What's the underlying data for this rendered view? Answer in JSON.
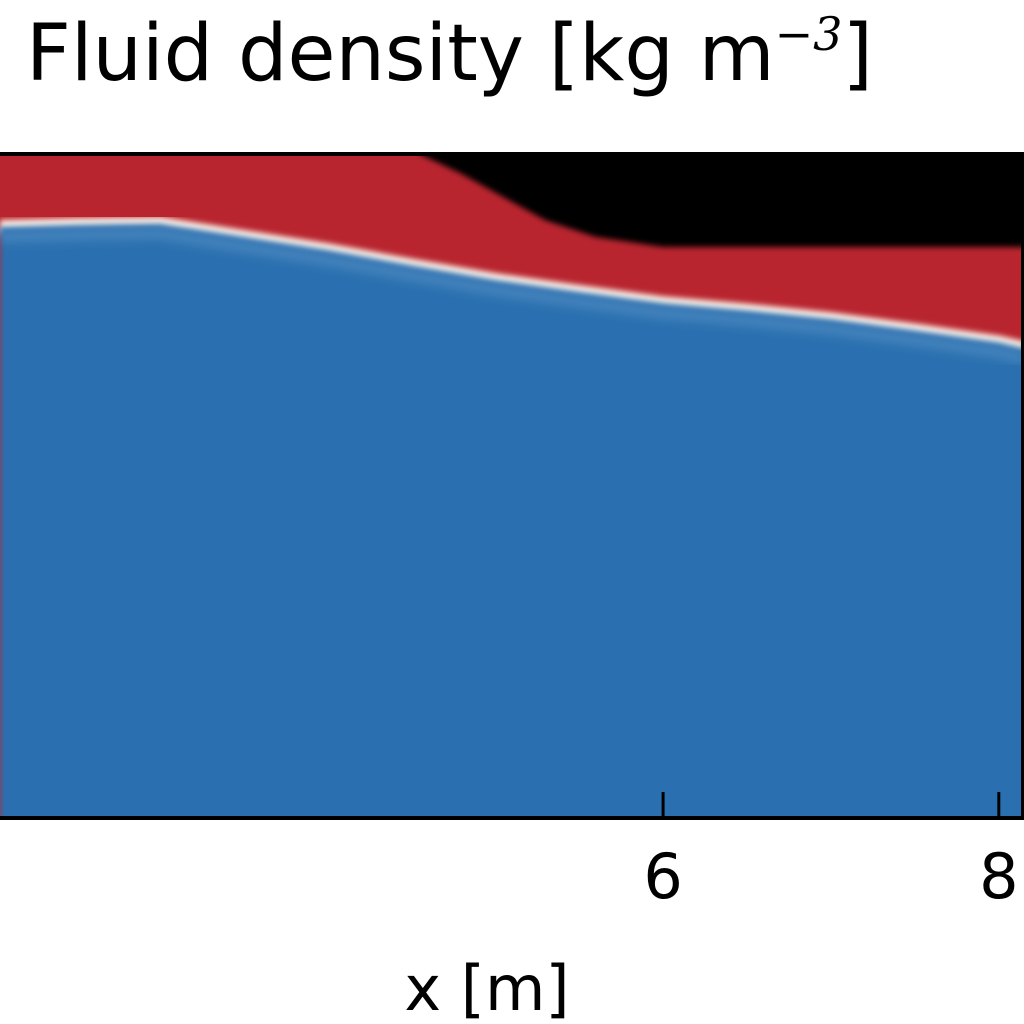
{
  "title": {
    "text": "Fluid density [kg m",
    "exponent": "−3",
    "close": "]"
  },
  "chart_data": {
    "type": "heatmap",
    "title": "Fluid density [kg m−3]",
    "xlabel": "x [m]",
    "ylabel": "",
    "xlim": [
      2.05,
      8.15
    ],
    "x_ticks": [
      6,
      8
    ],
    "x_tick_labels": [
      "6",
      "8"
    ],
    "grid": false,
    "colors": {
      "gas": "#000000",
      "light_fluid": "#b8252f",
      "interface": "#fdf3e8",
      "dense_fluid": "#2c6fb0"
    },
    "gas_boundary": {
      "x": [
        4.55,
        4.8,
        5.05,
        5.3,
        5.6,
        6.0,
        7.0,
        8.15
      ],
      "y": [
        1.0,
        0.97,
        0.935,
        0.9,
        0.875,
        0.86,
        0.86,
        0.86
      ]
    },
    "density_interface": {
      "x": [
        2.05,
        2.5,
        3.0,
        3.5,
        4.0,
        4.5,
        5.0,
        5.5,
        6.0,
        6.5,
        7.0,
        7.5,
        8.0,
        8.15
      ],
      "y": [
        0.89,
        0.893,
        0.895,
        0.875,
        0.855,
        0.832,
        0.81,
        0.792,
        0.775,
        0.764,
        0.751,
        0.734,
        0.716,
        0.707
      ]
    }
  }
}
